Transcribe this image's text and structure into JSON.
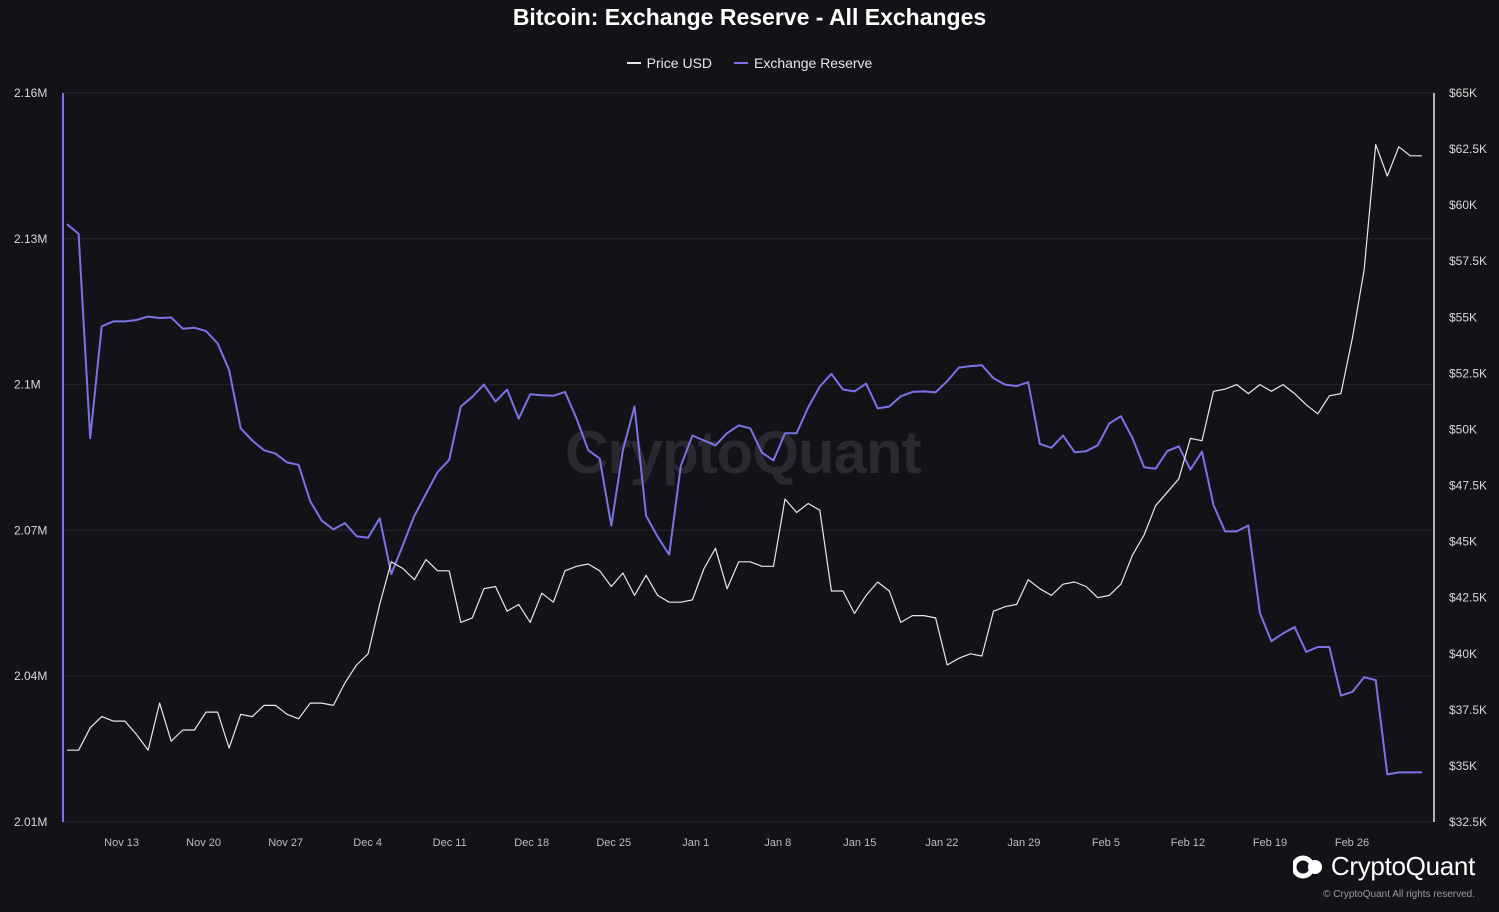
{
  "chart_data": {
    "type": "line",
    "title": "Bitcoin: Exchange Reserve - All Exchanges",
    "legend_position": "top-center",
    "grid": true,
    "x_tick_labels": [
      "Nov 13",
      "Nov 20",
      "Nov 27",
      "Dec 4",
      "Dec 11",
      "Dec 18",
      "Dec 25",
      "Jan 1",
      "Jan 8",
      "Jan 15",
      "Jan 22",
      "Jan 29",
      "Feb 5",
      "Feb 12",
      "Feb 19",
      "Feb 26"
    ],
    "x_range": [
      "2023-11-08",
      "2024-03-04"
    ],
    "y_left": {
      "ticks": [
        "2.01M",
        "2.04M",
        "2.07M",
        "2.1M",
        "2.13M",
        "2.16M"
      ],
      "range": [
        2010000,
        2160000
      ]
    },
    "y_right": {
      "ticks": [
        "$32.5K",
        "$35K",
        "$37.5K",
        "$40K",
        "$42.5K",
        "$45K",
        "$47.5K",
        "$50K",
        "$52.5K",
        "$55K",
        "$57.5K",
        "$60K",
        "$62.5K",
        "$65K"
      ]
    },
    "series": [
      {
        "name": "Price USD",
        "color": "#e8e8e8",
        "axis": "right",
        "values": [
          35700,
          35700,
          36700,
          37200,
          37000,
          37000,
          36400,
          35700,
          37800,
          36100,
          36600,
          36600,
          37400,
          37400,
          35800,
          37300,
          37200,
          37700,
          37700,
          37300,
          37100,
          37800,
          37800,
          37700,
          38700,
          39500,
          40000,
          42200,
          44100,
          43800,
          43300,
          44200,
          43700,
          43700,
          41400,
          41600,
          42900,
          43000,
          41900,
          42200,
          41400,
          42700,
          42300,
          43700,
          43900,
          44000,
          43700,
          43000,
          43600,
          42600,
          43500,
          42600,
          42300,
          42300,
          42400,
          43800,
          44700,
          42900,
          44100,
          44100,
          43900,
          43900,
          46900,
          46300,
          46700,
          46400,
          42800,
          42800,
          41800,
          42600,
          43200,
          42800,
          41400,
          41700,
          41700,
          41600,
          39500,
          39800,
          40000,
          39900,
          41900,
          42100,
          42200,
          43300,
          42900,
          42600,
          43100,
          43200,
          43000,
          42500,
          42600,
          43100,
          44400,
          45300,
          46600,
          47200,
          47800,
          49600,
          49500,
          51700,
          51800,
          52000,
          51600,
          52000,
          51700,
          52000,
          51600,
          51100,
          50700,
          51500,
          51600,
          54100,
          57100,
          62700,
          61300,
          62600,
          62200,
          62200
        ]
      },
      {
        "name": "Exchange Reserve",
        "color": "#7b72e6",
        "axis": "left",
        "values": [
          2133000,
          2131000,
          2089000,
          2112000,
          2113000,
          2113000,
          2113300,
          2114000,
          2113700,
          2113800,
          2111500,
          2111700,
          2111000,
          2108500,
          2103000,
          2091000,
          2088500,
          2086500,
          2085800,
          2084000,
          2083500,
          2076000,
          2072000,
          2070200,
          2071500,
          2068800,
          2068500,
          2072500,
          2061000,
          2067000,
          2073000,
          2077500,
          2082000,
          2084500,
          2095500,
          2097500,
          2100000,
          2096500,
          2099000,
          2093000,
          2098000,
          2097800,
          2097700,
          2098500,
          2093000,
          2086500,
          2084800,
          2071000,
          2086500,
          2095500,
          2073000,
          2068700,
          2065000,
          2083300,
          2089500,
          2088500,
          2087500,
          2090000,
          2091600,
          2091000,
          2086000,
          2084400,
          2090000,
          2090000,
          2095300,
          2099600,
          2102200,
          2099000,
          2098600,
          2100200,
          2095100,
          2095500,
          2097600,
          2098500,
          2098600,
          2098400,
          2100700,
          2103500,
          2103800,
          2104000,
          2101300,
          2100000,
          2099700,
          2100500,
          2087800,
          2087000,
          2089500,
          2086100,
          2086300,
          2087500,
          2092000,
          2093500,
          2089000,
          2083000,
          2082700,
          2086300,
          2087300,
          2082500,
          2086200,
          2075200,
          2069800,
          2069800,
          2071000,
          2053000,
          2047200,
          2048800,
          2050100,
          2045000,
          2046000,
          2046000,
          2036000,
          2036800,
          2039800,
          2039200,
          2019800,
          2020200,
          2020200,
          2020200
        ]
      }
    ]
  },
  "watermark": "CryptoQuant",
  "brand": {
    "name": "CryptoQuant",
    "copyright": "© CryptoQuant All rights reserved."
  }
}
